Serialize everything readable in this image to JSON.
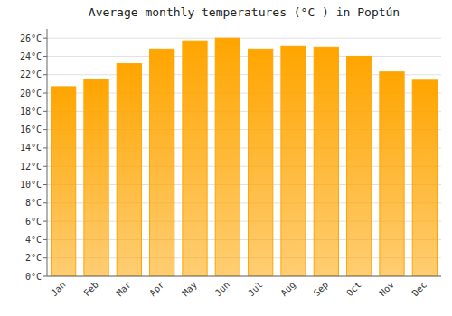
{
  "chart_data": {
    "type": "bar",
    "title": "Average monthly temperatures (°C ) in Poptún",
    "categories": [
      "Jan",
      "Feb",
      "Mar",
      "Apr",
      "May",
      "Jun",
      "Jul",
      "Aug",
      "Sep",
      "Oct",
      "Nov",
      "Dec"
    ],
    "values": [
      20.7,
      21.5,
      23.2,
      24.8,
      25.7,
      26.0,
      24.8,
      25.1,
      25.0,
      24.0,
      22.3,
      21.4
    ],
    "color": "#FFA500",
    "ylim": [
      0,
      27
    ],
    "yticks": [
      {
        "value": 0,
        "label": "0°C"
      },
      {
        "value": 2,
        "label": "2°C"
      },
      {
        "value": 4,
        "label": "4°C"
      },
      {
        "value": 6,
        "label": "6°C"
      },
      {
        "value": 8,
        "label": "8°C"
      },
      {
        "value": 10,
        "label": "10°C"
      },
      {
        "value": 12,
        "label": "12°C"
      },
      {
        "value": 14,
        "label": "14°C"
      },
      {
        "value": 16,
        "label": "16°C"
      },
      {
        "value": 18,
        "label": "18°C"
      },
      {
        "value": 20,
        "label": "20°C"
      },
      {
        "value": 22,
        "label": "22°C"
      },
      {
        "value": 24,
        "label": "24°C"
      },
      {
        "value": 26,
        "label": "26°C"
      }
    ],
    "grid": true
  }
}
